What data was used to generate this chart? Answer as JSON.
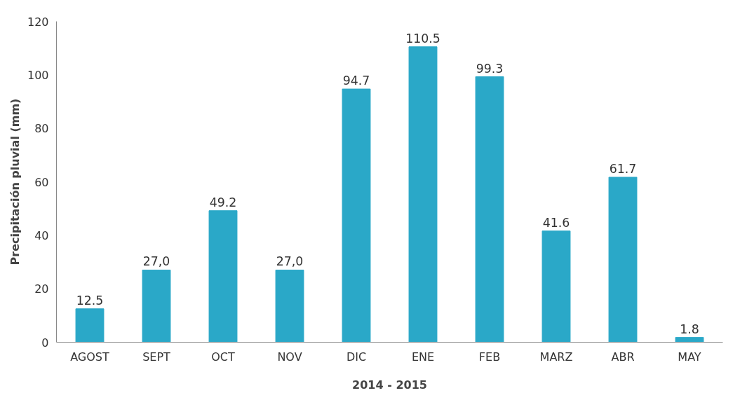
{
  "chart_data": {
    "type": "bar",
    "ylabel": "Precipitación pluvial (mm)",
    "xlabel": "2014 - 2015",
    "categories": [
      "AGOST",
      "SEPT",
      "OCT",
      "NOV",
      "DIC",
      "ENE",
      "FEB",
      "MARZ",
      "ABR",
      "MAY"
    ],
    "values": [
      12.5,
      27.0,
      49.2,
      27.0,
      94.7,
      110.5,
      99.3,
      41.6,
      61.7,
      1.8
    ],
    "value_labels": [
      "12.5",
      "27,0",
      "49.2",
      "27,0",
      "94.7",
      "110.5",
      "99.3",
      "41.6",
      "61.7",
      "1.8"
    ],
    "color": "#2aa8c8",
    "ylim": [
      0,
      120
    ],
    "yticks": [
      0,
      20,
      40,
      60,
      80,
      100,
      120
    ],
    "grid": false
  }
}
